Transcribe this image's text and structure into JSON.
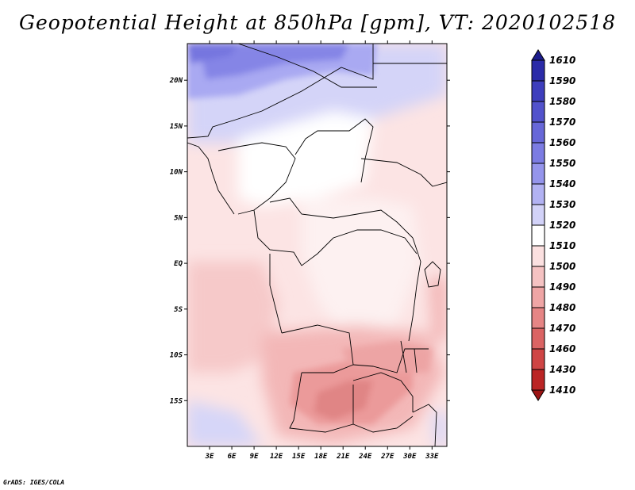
{
  "title": "Geopotential Height at 850hPa [gpm], VT: 2020102518",
  "credit": "GrADS: IGES/COLA",
  "map": {
    "lat_range": [
      -20,
      24
    ],
    "lon_range": [
      0,
      35
    ],
    "lat_ticks": [
      {
        "value": 20,
        "label": "20N"
      },
      {
        "value": 15,
        "label": "15N"
      },
      {
        "value": 10,
        "label": "10N"
      },
      {
        "value": 5,
        "label": "5N"
      },
      {
        "value": 0,
        "label": "EQ"
      },
      {
        "value": -5,
        "label": "5S"
      },
      {
        "value": -10,
        "label": "10S"
      },
      {
        "value": -15,
        "label": "15S"
      }
    ],
    "lon_ticks": [
      {
        "value": 3,
        "label": "3E"
      },
      {
        "value": 6,
        "label": "6E"
      },
      {
        "value": 9,
        "label": "9E"
      },
      {
        "value": 12,
        "label": "12E"
      },
      {
        "value": 15,
        "label": "15E"
      },
      {
        "value": 18,
        "label": "18E"
      },
      {
        "value": 21,
        "label": "21E"
      },
      {
        "value": 24,
        "label": "24E"
      },
      {
        "value": 27,
        "label": "27E"
      },
      {
        "value": 30,
        "label": "30E"
      },
      {
        "value": 33,
        "label": "33E"
      }
    ]
  },
  "colorbar": {
    "levels": [
      "1610",
      "1590",
      "1580",
      "1570",
      "1560",
      "1550",
      "1540",
      "1530",
      "1520",
      "1510",
      "1500",
      "1490",
      "1480",
      "1470",
      "1460",
      "1430",
      "1410"
    ],
    "colors": [
      "#1c1c8c",
      "#2b2ba8",
      "#3e3ebd",
      "#5252cc",
      "#6767d8",
      "#7c7ce3",
      "#9595ec",
      "#b2b2f3",
      "#d2d2f8",
      "#ffffff",
      "#fbe0e0",
      "#f5c2c2",
      "#efa5a5",
      "#e68585",
      "#db6464",
      "#cf4545",
      "#bb2525",
      "#9c1414"
    ]
  }
}
